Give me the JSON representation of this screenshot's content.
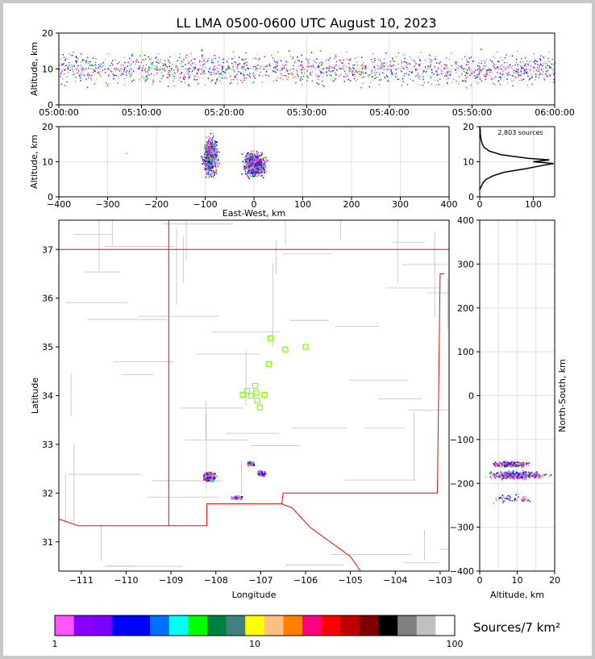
{
  "title": "LL LMA 0500-0600 UTC August 10, 2023",
  "colors": {
    "background": "#ffffff",
    "frame": "#c8c8c8",
    "state_border": "#ff0000",
    "county_border": "#c0c0c0",
    "station_marker": "#7fff00",
    "altitude_histogram_line": "#000000"
  },
  "chart_data": [
    {
      "id": "altitude-time",
      "type": "scatter",
      "xlabel": "",
      "ylabel": "Altitude, km",
      "xlim": [
        "05:00:00",
        "06:00:00"
      ],
      "ylim": [
        0,
        20
      ],
      "x_ticks": [
        "05:00:00",
        "05:10:00",
        "05:20:00",
        "05:30:00",
        "05:40:00",
        "05:50:00",
        "06:00:00"
      ],
      "y_ticks": [
        0,
        10,
        20
      ],
      "grid": true,
      "description_of_density": "sources spread through the hour, mostly 5-15 km altitude"
    },
    {
      "id": "altitude-eastwest",
      "type": "scatter",
      "xlabel": "East-West, km",
      "ylabel": "Altitude, km",
      "xlim": [
        -400,
        400
      ],
      "ylim": [
        0,
        20
      ],
      "x_ticks": [
        -400,
        -300,
        -200,
        -100,
        0,
        100,
        200,
        300,
        400
      ],
      "y_ticks": [
        0,
        10,
        20
      ],
      "grid": true,
      "clusters": [
        {
          "x": -90,
          "x_range": [
            -110,
            -70
          ],
          "z_range": [
            4,
            19
          ]
        },
        {
          "x": 0,
          "x_range": [
            -40,
            20
          ],
          "z_range": [
            5,
            14
          ]
        }
      ]
    },
    {
      "id": "altitude-histogram",
      "type": "line",
      "annotation": "2,803 sources",
      "xlim": [
        0,
        140
      ],
      "ylim": [
        0,
        20
      ],
      "x_ticks": [
        0,
        100
      ],
      "y_ticks": [
        0,
        10,
        20
      ],
      "grid": true,
      "series": [
        {
          "altitude": [
            2,
            3,
            4,
            5,
            6,
            7,
            8,
            9,
            9.5,
            10,
            10.5,
            11,
            12,
            13,
            14,
            15,
            16,
            17,
            18,
            19,
            20
          ],
          "count": [
            0,
            3,
            6,
            12,
            25,
            45,
            85,
            120,
            138,
            100,
            130,
            90,
            40,
            18,
            9,
            5,
            3,
            2,
            1,
            1,
            0
          ]
        }
      ]
    },
    {
      "id": "plan-view",
      "type": "scatter",
      "xlabel": "Longitude",
      "ylabel": "Latitude",
      "xlim": [
        -111.5,
        -102.8
      ],
      "ylim": [
        30.4,
        37.6
      ],
      "x_ticks": [
        -111,
        -110,
        -109,
        -108,
        -107,
        -106,
        -105,
        -104,
        -103
      ],
      "y_ticks": [
        31,
        32,
        33,
        34,
        35,
        36,
        37
      ],
      "stations": [
        {
          "lon": -106.78,
          "lat": 35.18
        },
        {
          "lon": -106.45,
          "lat": 34.95
        },
        {
          "lon": -106.0,
          "lat": 35.0
        },
        {
          "lon": -106.82,
          "lat": 34.65
        },
        {
          "lon": -107.12,
          "lat": 34.2
        },
        {
          "lon": -107.3,
          "lat": 34.1
        },
        {
          "lon": -107.1,
          "lat": 34.06
        },
        {
          "lon": -107.4,
          "lat": 34.02
        },
        {
          "lon": -107.22,
          "lat": 34.0
        },
        {
          "lon": -106.92,
          "lat": 34.02
        },
        {
          "lon": -107.08,
          "lat": 33.9
        },
        {
          "lon": -107.02,
          "lat": 33.76
        }
      ],
      "clusters": [
        {
          "lon": -108.15,
          "lat": 32.35,
          "spread_lon": 0.18,
          "spread_lat": 0.12,
          "n": 280
        },
        {
          "lon": -107.25,
          "lat": 32.62,
          "spread_lon": 0.09,
          "spread_lat": 0.05,
          "n": 90
        },
        {
          "lon": -107.0,
          "lat": 32.42,
          "spread_lon": 0.12,
          "spread_lat": 0.06,
          "n": 140
        },
        {
          "lon": -107.55,
          "lat": 31.92,
          "spread_lon": 0.15,
          "spread_lat": 0.05,
          "n": 40
        }
      ]
    },
    {
      "id": "ns-altitude",
      "type": "scatter",
      "xlabel": "Altitude, km",
      "ylabel": "North-South, km",
      "xlim": [
        0,
        20
      ],
      "ylim": [
        -400,
        400
      ],
      "x_ticks": [
        0,
        5,
        10,
        15,
        20
      ],
      "y_ticks": [
        -400,
        -300,
        -200,
        -100,
        0,
        100,
        200,
        300,
        400
      ],
      "grid": true
    }
  ],
  "colorbar": {
    "label": "Sources/7 km²",
    "ticks": [
      "1",
      "10",
      "100"
    ],
    "colors": [
      "#ff55ff",
      "#8a00ff",
      "#7b00ff",
      "#0000ff",
      "#0000ff",
      "#0070ff",
      "#00ffff",
      "#00ff00",
      "#008040",
      "#408080",
      "#ffff00",
      "#ffc080",
      "#ff8000",
      "#ff0080",
      "#ff0000",
      "#c00000",
      "#800000",
      "#000000",
      "#808080",
      "#c0c0c0",
      "#ffffff"
    ]
  }
}
